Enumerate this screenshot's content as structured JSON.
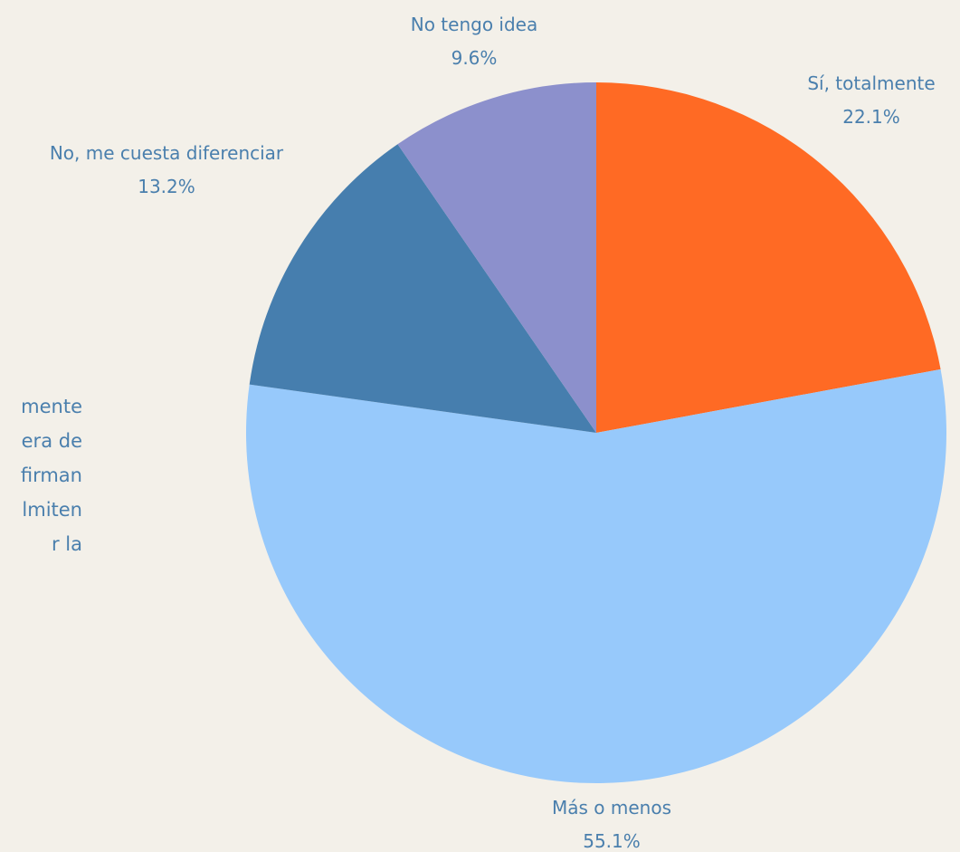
{
  "side_text": {
    "lines": [
      "mente",
      "era de",
      "firman",
      "lmiten",
      "r      la"
    ]
  },
  "chart_data": {
    "type": "pie",
    "start_angle_deg": 0,
    "direction": "clockwise",
    "slices": [
      {
        "label": "Sí, totalmente",
        "value": 22.1,
        "display": "22.1%",
        "color": "#ff6a24"
      },
      {
        "label": "Más o menos",
        "value": 55.1,
        "display": "55.1%",
        "color": "#97c9fb"
      },
      {
        "label": "No, me cuesta diferenciar",
        "value": 13.2,
        "display": "13.2%",
        "color": "#467eae"
      },
      {
        "label": "No tengo idea",
        "value": 9.6,
        "display": "9.6%",
        "color": "#8c90cc"
      }
    ],
    "label_color": "#4a7fad"
  }
}
